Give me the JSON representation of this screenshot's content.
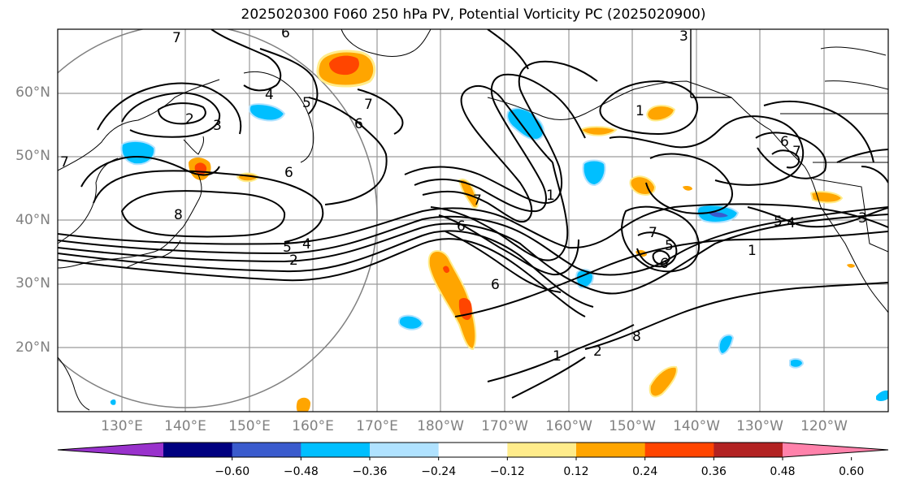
{
  "title": "2025020300 F060 250 hPa PV, Potential Vorticity PC (2025020900)",
  "lat_labels": [
    "60°N",
    "50°N",
    "40°N",
    "30°N",
    "20°N"
  ],
  "lon_labels": [
    "130°E",
    "140°E",
    "150°E",
    "160°E",
    "170°E",
    "180°W",
    "170°W",
    "160°W",
    "150°W",
    "140°W",
    "130°W",
    "120°W"
  ],
  "contour_labels": [
    "7",
    "6",
    "3",
    "2",
    "3",
    "4",
    "5",
    "6",
    "6",
    "7",
    "8",
    "5",
    "4",
    "2",
    "6",
    "7",
    "1",
    "6",
    "1",
    "7",
    "5",
    "6",
    "1",
    "3",
    "4",
    "5",
    "6",
    "7",
    "8",
    "1",
    "2",
    "7",
    "5"
  ],
  "colorbar": {
    "colors": [
      "#9932cc",
      "#000080",
      "#3a5bcd",
      "#00bfff",
      "#b0e2ff",
      "#ffffff",
      "#ffec8b",
      "#ffa500",
      "#ff4500",
      "#b22222",
      "#ff82ab"
    ],
    "tick_labels": [
      "−0.60",
      "−0.48",
      "−0.36",
      "−0.24",
      "−0.12",
      "0.12",
      "0.24",
      "0.36",
      "0.48",
      "0.60"
    ]
  }
}
